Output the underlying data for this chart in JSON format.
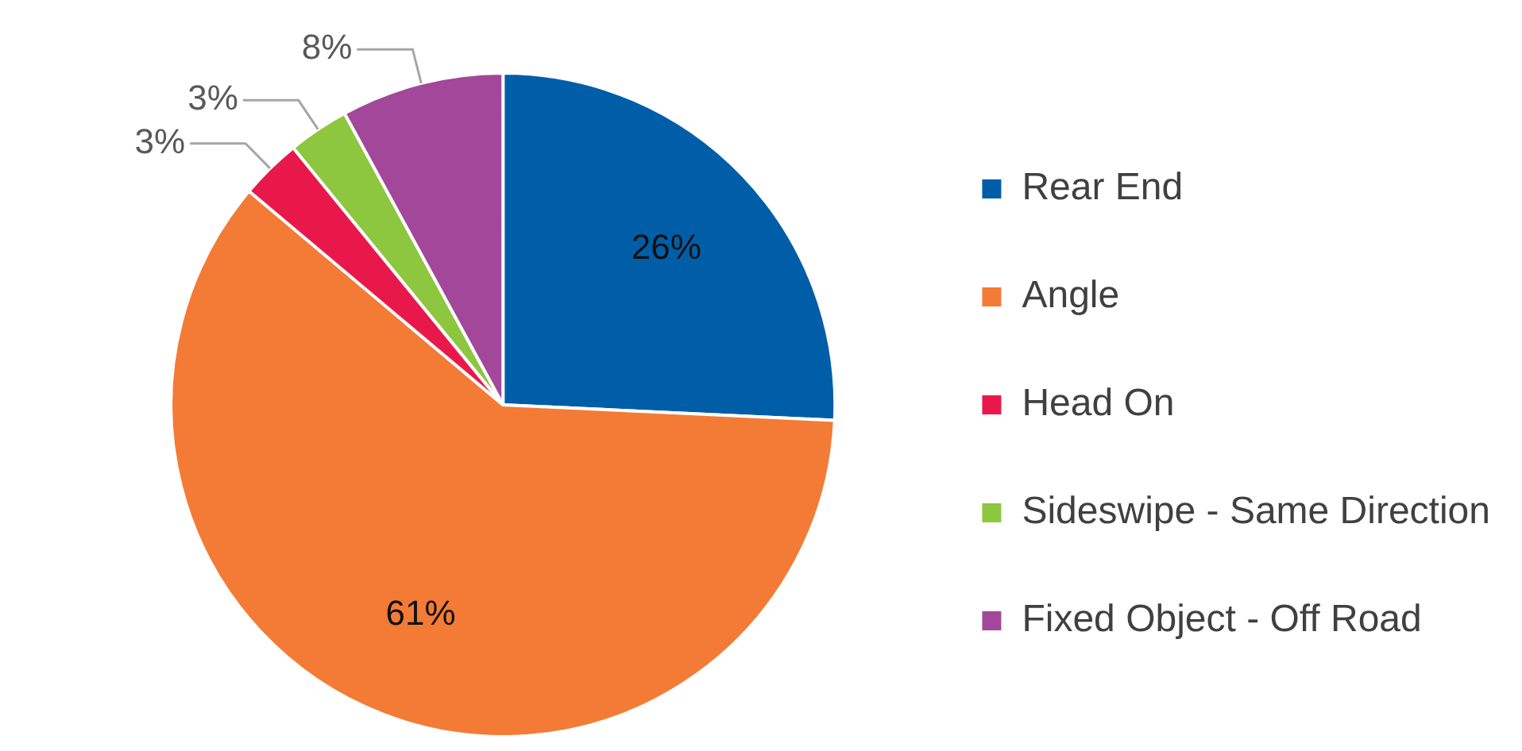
{
  "chart_data": {
    "type": "pie",
    "categories": [
      "Rear End",
      "Angle",
      "Head On",
      "Sideswipe - Same Direction",
      "Fixed Object - Off Road"
    ],
    "values": [
      26,
      61,
      3,
      3,
      8
    ],
    "colors": [
      "#005ea8",
      "#f47b35",
      "#e8194a",
      "#8dc63f",
      "#a3479a"
    ],
    "value_labels": [
      "26%",
      "61%",
      "3%",
      "3%",
      "8%"
    ],
    "legend": "right"
  }
}
